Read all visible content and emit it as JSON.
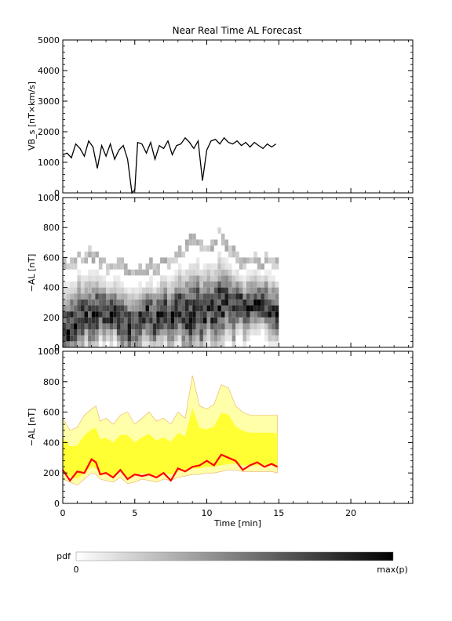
{
  "figure_title": "Near Real Time AL Forecast",
  "colors": {
    "vbs_line": "#000000",
    "band_fill": "#ffff33",
    "band_outer": "#ffffaa",
    "band_edge": "#e8b060",
    "median_line": "#ff0000",
    "axes": "#000000"
  },
  "chart_data": [
    {
      "type": "line",
      "panel": "top",
      "title": "Near Real Time AL Forecast",
      "ylabel": "VB_s [nT×km/s]",
      "ylim": [
        0,
        5000
      ],
      "xlim": [
        0,
        24.3
      ],
      "yticks": [
        "0",
        "1000",
        "2000",
        "3000",
        "4000",
        "5000"
      ],
      "series": [
        {
          "x": [
            0,
            0.3,
            0.6,
            0.9,
            1.2,
            1.5,
            1.8,
            2.1,
            2.4,
            2.7,
            3.0,
            3.3,
            3.6,
            3.9,
            4.2,
            4.5,
            4.8,
            5.0,
            5.2,
            5.5,
            5.8,
            6.1,
            6.4,
            6.7,
            7.0,
            7.3,
            7.6,
            7.9,
            8.2,
            8.5,
            8.8,
            9.1,
            9.4,
            9.7,
            10.0,
            10.3,
            10.6,
            10.9,
            11.2,
            11.5,
            11.8,
            12.1,
            12.4,
            12.7,
            13.0,
            13.3,
            13.6,
            13.9,
            14.2,
            14.5,
            14.8
          ],
          "values": [
            1250,
            1300,
            1150,
            1600,
            1450,
            1200,
            1700,
            1500,
            800,
            1550,
            1200,
            1600,
            1100,
            1400,
            1550,
            1100,
            0,
            100,
            1650,
            1600,
            1300,
            1650,
            1100,
            1550,
            1450,
            1700,
            1250,
            1550,
            1600,
            1800,
            1650,
            1450,
            1700,
            400,
            1400,
            1700,
            1750,
            1600,
            1800,
            1650,
            1600,
            1700,
            1550,
            1650,
            1500,
            1650,
            1550,
            1450,
            1600,
            1500,
            1600
          ]
        }
      ]
    },
    {
      "type": "heatmap",
      "panel": "middle",
      "ylabel": "−AL [nT]",
      "ylim": [
        0,
        1000
      ],
      "xlim": [
        0,
        24.3
      ],
      "yticks": [
        "0",
        "200",
        "400",
        "600",
        "800",
        "1000"
      ],
      "x_range": [
        0,
        15
      ],
      "columns": 60,
      "bin_size_nT": 40,
      "column_envelope": {
        "x": [
          0,
          1,
          2,
          3,
          4,
          5,
          6,
          7,
          8,
          9,
          10,
          11,
          12,
          13,
          14,
          15
        ],
        "peak": [
          60,
          200,
          220,
          260,
          180,
          160,
          210,
          200,
          240,
          220,
          260,
          300,
          260,
          270,
          270,
          260
        ],
        "max": [
          560,
          600,
          640,
          560,
          560,
          520,
          560,
          560,
          600,
          760,
          640,
          780,
          600,
          580,
          580,
          580
        ]
      }
    },
    {
      "type": "area",
      "panel": "bottom",
      "ylabel": "−AL [nT]",
      "xlabel": "Time [min]",
      "ylim": [
        0,
        1000
      ],
      "xlim": [
        0,
        24.3
      ],
      "yticks": [
        "0",
        "200",
        "400",
        "600",
        "800",
        "1000"
      ],
      "xticks": [
        "0",
        "5",
        "10",
        "15",
        "20"
      ],
      "x": [
        0,
        0.5,
        1.0,
        1.5,
        2.0,
        2.3,
        2.6,
        3.0,
        3.5,
        4.0,
        4.5,
        5.0,
        5.5,
        6.0,
        6.5,
        7.0,
        7.5,
        8.0,
        8.5,
        9.0,
        9.5,
        10.0,
        10.5,
        11.0,
        11.5,
        12.0,
        12.5,
        13.0,
        13.5,
        14.0,
        14.5,
        14.9
      ],
      "series": [
        {
          "role": "band_upper",
          "values": [
            560,
            480,
            500,
            580,
            620,
            640,
            540,
            560,
            520,
            580,
            600,
            520,
            560,
            600,
            540,
            560,
            520,
            600,
            560,
            840,
            640,
            620,
            650,
            780,
            760,
            640,
            600,
            580,
            580,
            580,
            580,
            580
          ]
        },
        {
          "role": "band_lower",
          "values": [
            200,
            180,
            160,
            200,
            240,
            230,
            200,
            190,
            180,
            210,
            170,
            180,
            200,
            190,
            180,
            200,
            190,
            210,
            220,
            230,
            230,
            240,
            240,
            250,
            260,
            260,
            250,
            250,
            250,
            250,
            250,
            240
          ]
        },
        {
          "role": "median",
          "values": [
            220,
            150,
            210,
            200,
            290,
            270,
            190,
            200,
            170,
            220,
            160,
            190,
            180,
            190,
            170,
            200,
            150,
            230,
            210,
            240,
            250,
            280,
            250,
            320,
            300,
            280,
            220,
            250,
            270,
            240,
            260,
            240
          ]
        }
      ]
    }
  ],
  "colorbar": {
    "label": "pdf",
    "min_label": "0",
    "max_label": "max(p)"
  }
}
